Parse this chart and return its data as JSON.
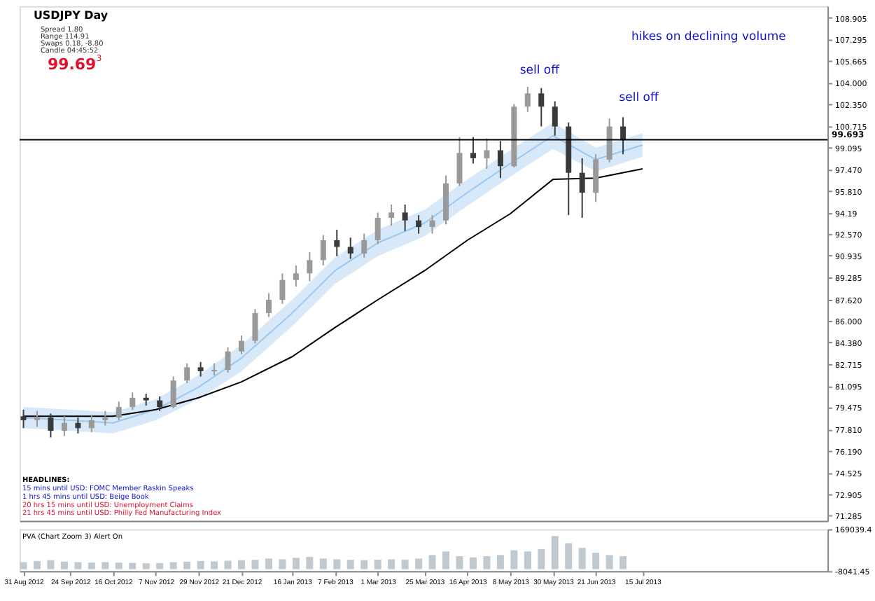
{
  "chart_data": [
    {
      "type": "candlestick",
      "title": "USDJPY  Day",
      "annotations": [
        "Spread  1.80",
        "Range  114.91",
        "Swaps  0.18, -8.80",
        "Candle  04:45:52",
        "99.69$^{3}$",
        "HEADLINES:",
        "15 mins until USD: FOMC Member Raskin Speaks",
        "1 hrs 45 mins until USD: Beige Book",
        "20 hrs 15 mins until USD: Unemployment Claims",
        "21 hrs 45 mins until USD: Philly Fed Manufacturing Index",
        "sell off",
        "sell off",
        "hikes on declining volume"
      ],
      "x": [
        "2012-08-31",
        "2012-09-07",
        "2012-09-14",
        "2012-09-21",
        "2012-09-28",
        "2012-10-05",
        "2012-10-12",
        "2012-10-19",
        "2012-10-26",
        "2012-11-02",
        "2012-11-09",
        "2012-11-16",
        "2012-11-23",
        "2012-11-30",
        "2012-12-07",
        "2012-12-14",
        "2012-12-21",
        "2012-12-28",
        "2013-01-04",
        "2013-01-11",
        "2013-01-18",
        "2013-01-25",
        "2013-02-01",
        "2013-02-08",
        "2013-02-15",
        "2013-02-22",
        "2013-03-01",
        "2013-03-08",
        "2013-03-15",
        "2013-03-22",
        "2013-03-29",
        "2013-04-05",
        "2013-04-12",
        "2013-04-19",
        "2013-04-26",
        "2013-05-03",
        "2013-05-10",
        "2013-05-17",
        "2013-05-24",
        "2013-05-31",
        "2013-06-07",
        "2013-06-14",
        "2013-06-21",
        "2013-06-28",
        "2013-07-05"
      ],
      "ohlc": [
        [
          78.8,
          79.3,
          77.9,
          78.5
        ],
        [
          78.5,
          79.2,
          78.0,
          78.7
        ],
        [
          78.7,
          79.0,
          77.2,
          77.7
        ],
        [
          77.7,
          78.8,
          77.3,
          78.3
        ],
        [
          78.3,
          78.7,
          77.5,
          77.9
        ],
        [
          77.9,
          78.9,
          77.6,
          78.5
        ],
        [
          78.5,
          79.2,
          78.1,
          78.7
        ],
        [
          78.7,
          79.9,
          78.5,
          79.5
        ],
        [
          79.5,
          80.6,
          79.3,
          80.2
        ],
        [
          80.2,
          80.5,
          79.6,
          80.0
        ],
        [
          80.0,
          80.3,
          79.2,
          79.5
        ],
        [
          79.5,
          81.8,
          79.4,
          81.5
        ],
        [
          81.5,
          82.8,
          81.3,
          82.5
        ],
        [
          82.5,
          82.9,
          81.8,
          82.2
        ],
        [
          82.2,
          82.8,
          81.9,
          82.3
        ],
        [
          82.3,
          84.0,
          82.1,
          83.7
        ],
        [
          83.7,
          84.9,
          83.5,
          84.5
        ],
        [
          84.5,
          86.9,
          84.3,
          86.6
        ],
        [
          86.6,
          88.1,
          86.3,
          87.6
        ],
        [
          87.6,
          89.6,
          87.3,
          89.1
        ],
        [
          89.1,
          90.2,
          88.6,
          89.6
        ],
        [
          89.6,
          91.2,
          89.0,
          90.6
        ],
        [
          90.6,
          92.5,
          90.2,
          92.1
        ],
        [
          92.1,
          92.9,
          90.9,
          91.6
        ],
        [
          91.6,
          92.3,
          90.7,
          91.1
        ],
        [
          91.1,
          92.6,
          90.8,
          92.1
        ],
        [
          92.1,
          94.2,
          91.8,
          93.8
        ],
        [
          93.8,
          94.8,
          93.2,
          94.2
        ],
        [
          94.2,
          94.8,
          92.8,
          93.6
        ],
        [
          93.6,
          94.0,
          92.6,
          93.1
        ],
        [
          93.1,
          94.0,
          92.6,
          93.6
        ],
        [
          93.6,
          97.0,
          93.3,
          96.4
        ],
        [
          96.4,
          99.9,
          96.2,
          98.7
        ],
        [
          98.7,
          99.9,
          97.9,
          98.3
        ],
        [
          98.3,
          99.8,
          97.5,
          98.9
        ],
        [
          98.9,
          99.6,
          96.8,
          97.7
        ],
        [
          97.7,
          102.4,
          97.6,
          102.2
        ],
        [
          102.2,
          103.7,
          101.8,
          103.2
        ],
        [
          103.2,
          103.6,
          100.7,
          102.2
        ],
        [
          102.2,
          102.6,
          100.0,
          100.7
        ],
        [
          100.7,
          101.0,
          94.0,
          97.2
        ],
        [
          97.2,
          98.3,
          93.8,
          95.7
        ],
        [
          95.7,
          98.6,
          95.0,
          98.2
        ],
        [
          98.2,
          101.3,
          98.0,
          100.7
        ],
        [
          100.7,
          101.4,
          98.6,
          99.7
        ]
      ],
      "colors": [
        "#3a3a3a",
        "#999999",
        "#3a3a3a",
        "#999999",
        "#3a3a3a",
        "#999999",
        "#999999",
        "#999999",
        "#999999",
        "#3a3a3a",
        "#3a3a3a",
        "#999999",
        "#999999",
        "#3a3a3a",
        "#999999",
        "#999999",
        "#999999",
        "#999999",
        "#999999",
        "#999999",
        "#999999",
        "#999999",
        "#999999",
        "#3a3a3a",
        "#3a3a3a",
        "#999999",
        "#999999",
        "#999999",
        "#3a3a3a",
        "#3a3a3a",
        "#999999",
        "#999999",
        "#999999",
        "#3a3a3a",
        "#999999",
        "#3a3a3a",
        "#999999",
        "#999999",
        "#3a3a3a",
        "#3a3a3a",
        "#3a3a3a",
        "#3a3a3a",
        "#999999",
        "#999999",
        "#3a3a3a"
      ],
      "series": [
        {
          "type": "line",
          "color": "#9cc8ef",
          "x": [
            "2012-08-31",
            "2012-09-24",
            "2012-10-16",
            "2012-11-07",
            "2012-11-29",
            "2012-12-21",
            "2013-01-16",
            "2013-02-07",
            "2013-03-01",
            "2013-03-25",
            "2013-04-16",
            "2013-05-08",
            "2013-05-30",
            "2013-06-21",
            "2013-07-15"
          ],
          "values": [
            78.7,
            78.5,
            78.3,
            79.3,
            81.0,
            83.2,
            86.6,
            89.8,
            91.9,
            93.4,
            95.7,
            97.9,
            100.0,
            98.2,
            99.3
          ],
          "lower": [
            77.9,
            77.7,
            77.5,
            78.5,
            80.1,
            82.2,
            85.6,
            88.8,
            90.9,
            92.4,
            94.7,
            96.9,
            99.0,
            97.3,
            98.4
          ],
          "upper": [
            79.5,
            79.3,
            79.1,
            80.1,
            81.9,
            84.2,
            87.6,
            90.8,
            92.9,
            94.4,
            96.7,
            98.9,
            101.0,
            99.1,
            100.2
          ]
        },
        {
          "type": "line",
          "color": "#000000",
          "x": [
            "2012-08-31",
            "2012-09-24",
            "2012-10-16",
            "2012-11-07",
            "2012-11-29",
            "2012-12-21",
            "2013-01-16",
            "2013-02-07",
            "2013-03-01",
            "2013-03-25",
            "2013-04-16",
            "2013-05-08",
            "2013-05-30",
            "2013-06-21",
            "2013-07-15"
          ],
          "values": [
            78.8,
            78.8,
            78.8,
            79.3,
            80.2,
            81.4,
            83.3,
            85.5,
            87.6,
            89.8,
            92.1,
            94.1,
            96.7,
            96.8,
            97.5
          ]
        }
      ],
      "ref_lines": [
        {
          "axis": "y",
          "value": 99.693,
          "label": "99.693",
          "color": "#000000"
        }
      ],
      "xlim": [
        "2012-08-29",
        "2013-10-18"
      ],
      "ylim": [
        70.9,
        109.8
      ],
      "yticks": [
        108.905,
        107.295,
        105.665,
        {
          "value": 104.0,
          "label": "104.000"
        },
        {
          "value": 102.35,
          "label": "102.350"
        },
        100.715,
        99.095,
        {
          "value": 97.47,
          "label": "97.470"
        },
        {
          "value": 95.81,
          "label": "95.810"
        },
        94.19,
        {
          "value": 92.57,
          "label": "92.570"
        },
        90.935,
        89.285,
        {
          "value": 87.62,
          "label": "87.620"
        },
        {
          "value": 86.0,
          "label": "86.000"
        },
        {
          "value": 84.38,
          "label": "84.380"
        },
        82.715,
        81.095,
        79.475,
        {
          "value": 77.81,
          "label": "77.810"
        },
        {
          "value": 76.19,
          "label": "76.190"
        },
        74.525,
        72.905,
        71.285
      ],
      "tick_labels": "y"
    },
    {
      "type": "bar",
      "title": "PVA (Chart Zoom 3)   Alert On",
      "x": [
        "2012-08-31",
        "2012-09-07",
        "2012-09-14",
        "2012-09-21",
        "2012-09-28",
        "2012-10-05",
        "2012-10-12",
        "2012-10-19",
        "2012-10-26",
        "2012-11-02",
        "2012-11-09",
        "2012-11-16",
        "2012-11-23",
        "2012-11-30",
        "2012-12-07",
        "2012-12-14",
        "2012-12-21",
        "2012-12-28",
        "2013-01-04",
        "2013-01-11",
        "2013-01-18",
        "2013-01-25",
        "2013-02-01",
        "2013-02-08",
        "2013-02-15",
        "2013-02-22",
        "2013-03-01",
        "2013-03-08",
        "2013-03-15",
        "2013-03-22",
        "2013-03-29",
        "2013-04-05",
        "2013-04-12",
        "2013-04-19",
        "2013-04-26",
        "2013-05-03",
        "2013-05-10",
        "2013-05-17",
        "2013-05-24",
        "2013-05-31",
        "2013-06-07",
        "2013-06-14",
        "2013-06-21",
        "2013-06-28",
        "2013-07-05"
      ],
      "values": [
        30000,
        35000,
        38000,
        32000,
        30000,
        28000,
        30000,
        28000,
        27000,
        25000,
        26000,
        30000,
        32000,
        35000,
        33000,
        36000,
        38000,
        40000,
        45000,
        42000,
        48000,
        52000,
        45000,
        42000,
        40000,
        38000,
        40000,
        42000,
        40000,
        45000,
        60000,
        75000,
        55000,
        50000,
        55000,
        60000,
        80000,
        75000,
        85000,
        140000,
        110000,
        90000,
        70000,
        60000,
        55000
      ],
      "color": "#c0c8d0",
      "xlim": [
        "2012-08-29",
        "2013-10-18"
      ],
      "ylim": [
        -8041.45,
        169039.4
      ],
      "yticks": [
        169039.4,
        -8041.45
      ],
      "xticks": [
        {
          "value": "2012-08-31",
          "label": "31 Aug 2012"
        },
        {
          "value": "2012-09-24",
          "label": "24 Sep 2012"
        },
        {
          "value": "2012-10-16",
          "label": "16 Oct 2012"
        },
        {
          "value": "2012-11-07",
          "label": "7 Nov 2012"
        },
        {
          "value": "2012-11-29",
          "label": "29 Nov 2012"
        },
        {
          "value": "2012-12-21",
          "label": "21 Dec 2012"
        },
        {
          "value": "2013-01-16",
          "label": "16 Jan 2013"
        },
        {
          "value": "2013-02-07",
          "label": "7 Feb 2013"
        },
        {
          "value": "2013-03-01",
          "label": "1 Mar 2013"
        },
        {
          "value": "2013-03-25",
          "label": "25 Mar 2013"
        },
        {
          "value": "2013-04-16",
          "label": "16 Apr 2013"
        },
        {
          "value": "2013-05-08",
          "label": "8 May 2013"
        },
        {
          "value": "2013-05-30",
          "label": "30 May 2013"
        },
        {
          "value": "2013-06-21",
          "label": "21 Jun 2013"
        },
        {
          "value": "2013-07-15",
          "label": "15 Jul 2013"
        }
      ]
    }
  ]
}
